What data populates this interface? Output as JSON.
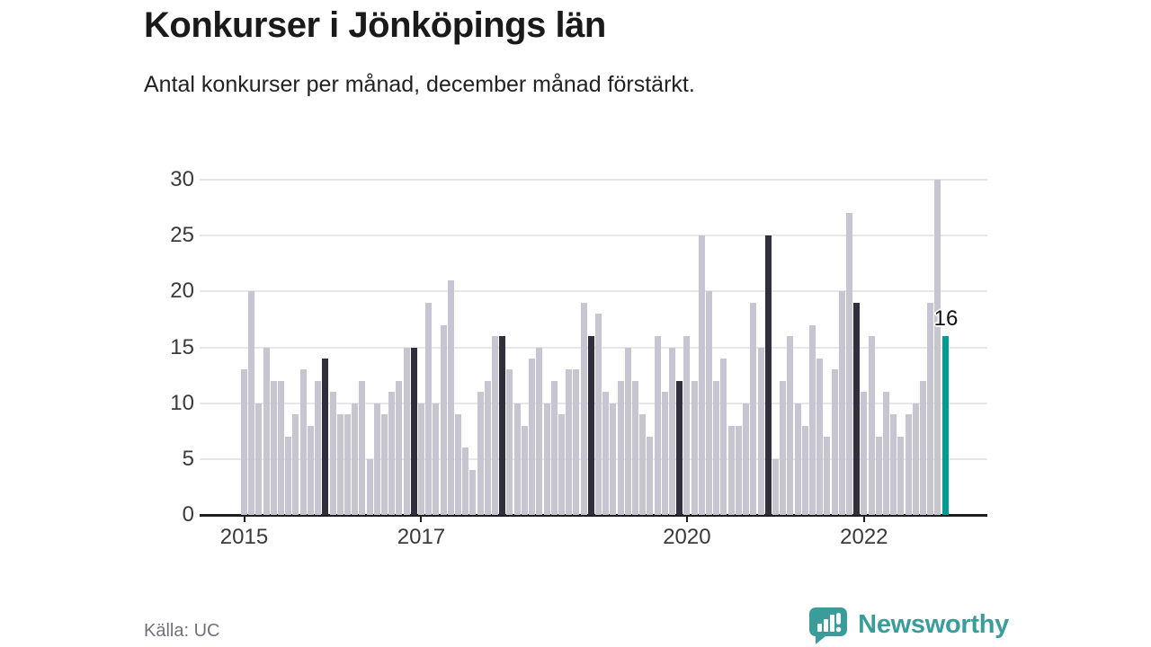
{
  "header": {
    "title": "Konkurser i Jönköpings län",
    "subtitle": "Antal konkurser per månad, december månad förstärkt."
  },
  "footer": {
    "source": "Källa: UC",
    "logo_text": "Newsworthy",
    "logo_icon": "newsworthy-speech-bubble-bar-chart-icon"
  },
  "colors": {
    "bar_default": "#c7c5d2",
    "bar_december": "#312f3e",
    "bar_highlight": "#009c94",
    "grid": "#e7e7ea",
    "axis": "#1f1f1f",
    "title_text": "#1a1a1a",
    "tick_text": "#3a3a3a",
    "muted_text": "#71717b",
    "logo_teal": "#3a9d99",
    "annotation_text": "#111111"
  },
  "chart_data": {
    "type": "bar",
    "title": "Konkurser i Jönköpings län",
    "xlabel": "",
    "ylabel": "",
    "ylim": [
      0,
      30
    ],
    "yticks": [
      0,
      5,
      10,
      15,
      20,
      25,
      30
    ],
    "grid": true,
    "legend": "none",
    "start": {
      "year": 2015,
      "month": 1
    },
    "end": {
      "year": 2022,
      "month": 12
    },
    "values_by_year": {
      "2015": [
        13,
        20,
        10,
        15,
        12,
        12,
        7,
        9,
        13,
        8,
        12,
        14
      ],
      "2016": [
        11,
        9,
        9,
        10,
        12,
        5,
        10,
        9,
        11,
        12,
        15,
        15
      ],
      "2017": [
        10,
        19,
        10,
        17,
        21,
        9,
        6,
        4,
        11,
        12,
        16,
        16
      ],
      "2018": [
        13,
        10,
        8,
        14,
        15,
        10,
        12,
        9,
        13,
        13,
        19,
        16
      ],
      "2019": [
        18,
        11,
        10,
        12,
        15,
        12,
        9,
        7,
        16,
        11,
        15,
        12
      ],
      "2020": [
        16,
        12,
        25,
        20,
        12,
        14,
        8,
        8,
        10,
        19,
        15,
        25
      ],
      "2021": [
        5,
        12,
        16,
        10,
        8,
        17,
        14,
        7,
        13,
        20,
        27,
        19
      ],
      "2022": [
        11,
        16,
        7,
        11,
        9,
        7,
        9,
        10,
        12,
        19,
        30,
        16
      ]
    },
    "xticks": [
      {
        "label": "2015",
        "month_index": 0
      },
      {
        "label": "2017",
        "month_index": 24
      },
      {
        "label": "2020",
        "month_index": 60
      },
      {
        "label": "2022",
        "month_index": 84
      }
    ],
    "december_style": "dark",
    "highlight": {
      "month": "2022-12",
      "value": 16,
      "label": "16"
    }
  }
}
